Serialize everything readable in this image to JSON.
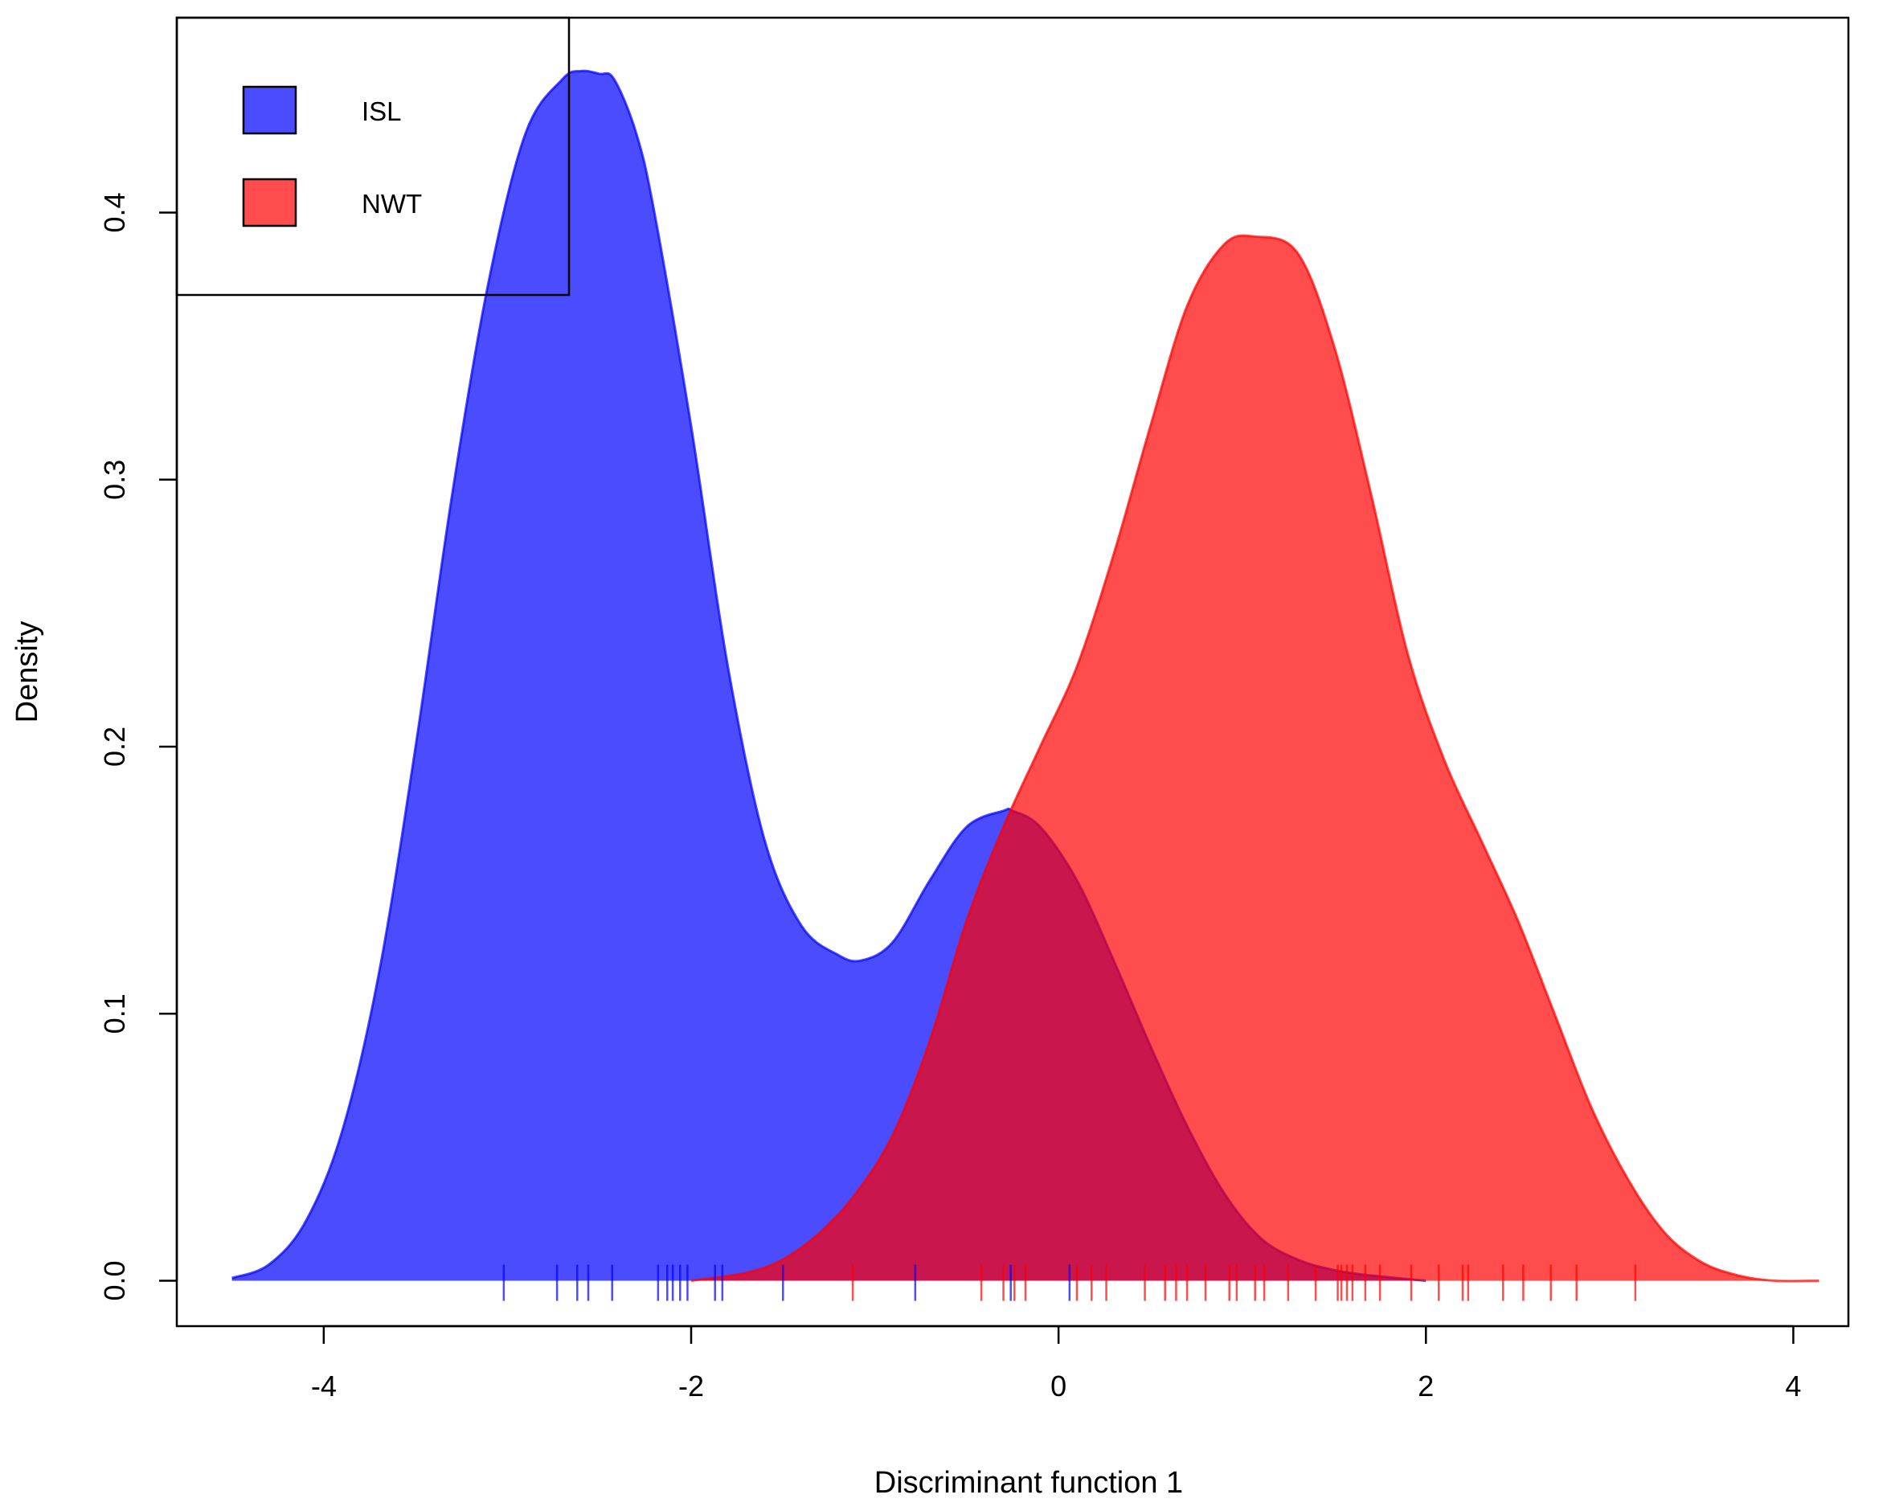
{
  "chart_data": {
    "type": "area",
    "xlabel": "Discriminant function 1",
    "ylabel": "Density",
    "xlim": [
      -4.8,
      4.3
    ],
    "ylim": [
      -0.017,
      0.473
    ],
    "x_ticks": [
      "-4",
      "-2",
      "0",
      "2",
      "4"
    ],
    "y_ticks": [
      "0.0",
      "0.1",
      "0.2",
      "0.3",
      "0.4"
    ],
    "legend_position": "top-left",
    "series": [
      {
        "name": "ISL",
        "color": "#0000ff",
        "fill_opacity": 0.7,
        "x": [
          -4.5,
          -4.3,
          -4.1,
          -3.9,
          -3.7,
          -3.5,
          -3.3,
          -3.1,
          -2.9,
          -2.7,
          -2.6,
          -2.5,
          -2.42,
          -2.3,
          -2.2,
          -2.0,
          -1.8,
          -1.6,
          -1.4,
          -1.2,
          -1.07,
          -0.9,
          -0.7,
          -0.5,
          -0.3,
          -0.25,
          -0.1,
          0.1,
          0.3,
          0.5,
          0.7,
          0.9,
          1.1,
          1.3,
          1.5,
          1.7,
          2.0
        ],
        "y": [
          0.001,
          0.006,
          0.022,
          0.056,
          0.115,
          0.2,
          0.295,
          0.375,
          0.43,
          0.45,
          0.453,
          0.452,
          0.45,
          0.43,
          0.4,
          0.32,
          0.23,
          0.165,
          0.133,
          0.122,
          0.12,
          0.127,
          0.15,
          0.17,
          0.176,
          0.176,
          0.17,
          0.15,
          0.12,
          0.088,
          0.058,
          0.033,
          0.016,
          0.008,
          0.004,
          0.002,
          0.0
        ]
      },
      {
        "name": "NWT",
        "color": "#ff0000",
        "fill_opacity": 0.7,
        "x": [
          -2.0,
          -1.7,
          -1.5,
          -1.3,
          -1.1,
          -0.9,
          -0.7,
          -0.5,
          -0.3,
          -0.1,
          0.1,
          0.3,
          0.5,
          0.7,
          0.9,
          1.07,
          1.3,
          1.5,
          1.7,
          1.9,
          2.1,
          2.3,
          2.5,
          2.7,
          2.9,
          3.1,
          3.3,
          3.5,
          3.7,
          3.9,
          4.14
        ],
        "y": [
          0.0,
          0.003,
          0.008,
          0.018,
          0.033,
          0.055,
          0.09,
          0.135,
          0.17,
          0.2,
          0.23,
          0.272,
          0.32,
          0.365,
          0.388,
          0.391,
          0.385,
          0.35,
          0.295,
          0.235,
          0.195,
          0.165,
          0.135,
          0.1,
          0.065,
          0.038,
          0.018,
          0.007,
          0.002,
          0.0,
          0.0
        ]
      }
    ],
    "rug": {
      "ISL": [
        -3.02,
        -2.73,
        -2.62,
        -2.56,
        -2.43,
        -2.18,
        -2.13,
        -2.1,
        -2.06,
        -2.02,
        -1.87,
        -1.83,
        -1.5,
        -0.78,
        -0.26,
        0.06
      ],
      "NWT": [
        -1.12,
        -0.42,
        -0.3,
        -0.24,
        -0.18,
        0.1,
        0.18,
        0.26,
        0.47,
        0.58,
        0.64,
        0.7,
        0.8,
        0.93,
        0.97,
        1.07,
        1.12,
        1.25,
        1.4,
        1.52,
        1.54,
        1.57,
        1.6,
        1.67,
        1.75,
        1.92,
        2.07,
        2.2,
        2.23,
        2.42,
        2.53,
        2.68,
        2.82,
        3.14
      ]
    }
  }
}
